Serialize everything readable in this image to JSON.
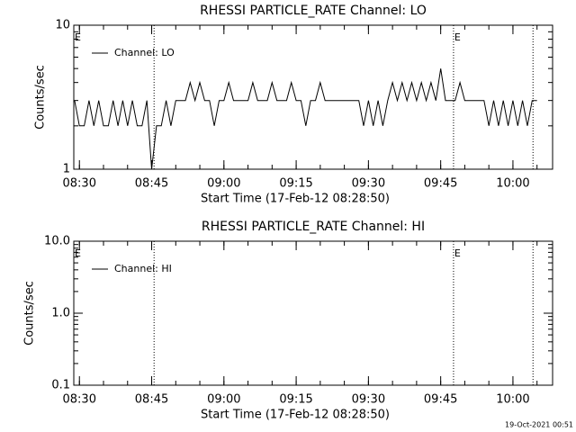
{
  "chart_data": [
    {
      "type": "line",
      "title": "RHESSI PARTICLE_RATE Channel: LO",
      "x_label": "Start Time (17-Feb-12 08:28:50)",
      "y_label": "Counts/sec",
      "log_y": true,
      "ylim": [
        1,
        10
      ],
      "yticks": [
        1,
        10
      ],
      "xlim": [
        "08:28:50",
        "10:08:14"
      ],
      "xticks": [
        "08:30",
        "08:45",
        "09:00",
        "09:15",
        "09:30",
        "09:45",
        "10:00"
      ],
      "markers": [
        "08:45:30",
        "09:47:40",
        "10:04:10"
      ],
      "annotations": [
        {
          "text": "E",
          "x": "08:28:50"
        },
        {
          "text": "E",
          "x": "09:47:40"
        }
      ],
      "legend": "upper left",
      "series": [
        {
          "name": "Channel: LO",
          "color": "#000000",
          "x": [
            "08:29",
            "08:30",
            "08:31",
            "08:32",
            "08:33",
            "08:34",
            "08:35",
            "08:36",
            "08:37",
            "08:38",
            "08:39",
            "08:40",
            "08:41",
            "08:42",
            "08:43",
            "08:44",
            "08:45",
            "08:46",
            "08:47",
            "08:48",
            "08:49",
            "08:50",
            "08:51",
            "08:52",
            "08:53",
            "08:54",
            "08:55",
            "08:56",
            "08:57",
            "08:58",
            "08:59",
            "09:00",
            "09:01",
            "09:02",
            "09:03",
            "09:04",
            "09:05",
            "09:06",
            "09:07",
            "09:08",
            "09:09",
            "09:10",
            "09:11",
            "09:12",
            "09:13",
            "09:14",
            "09:15",
            "09:16",
            "09:17",
            "09:18",
            "09:19",
            "09:20",
            "09:21",
            "09:22",
            "09:23",
            "09:24",
            "09:25",
            "09:26",
            "09:27",
            "09:28",
            "09:29",
            "09:30",
            "09:31",
            "09:32",
            "09:33",
            "09:34",
            "09:35",
            "09:36",
            "09:37",
            "09:38",
            "09:39",
            "09:40",
            "09:41",
            "09:42",
            "09:43",
            "09:44",
            "09:45",
            "09:46",
            "09:47",
            "09:48",
            "09:49",
            "09:50",
            "09:51",
            "09:52",
            "09:53",
            "09:54",
            "09:55",
            "09:56",
            "09:57",
            "09:58",
            "09:59",
            "10:00",
            "10:01",
            "10:02",
            "10:03",
            "10:04",
            "10:05"
          ],
          "values": [
            3,
            2,
            2,
            3,
            2,
            3,
            2,
            2,
            3,
            2,
            3,
            2,
            3,
            2,
            2,
            3,
            1,
            2,
            2,
            3,
            2,
            3,
            3,
            3,
            4,
            3,
            4,
            3,
            3,
            2,
            3,
            3,
            4,
            3,
            3,
            3,
            3,
            4,
            3,
            3,
            3,
            4,
            3,
            3,
            3,
            4,
            3,
            3,
            2,
            3,
            3,
            4,
            3,
            3,
            3,
            3,
            3,
            3,
            3,
            3,
            2,
            3,
            2,
            3,
            2,
            3,
            4,
            3,
            4,
            3,
            4,
            3,
            4,
            3,
            4,
            3,
            5,
            3,
            3,
            3,
            4,
            3,
            3,
            3,
            3,
            3,
            2,
            3,
            2,
            3,
            2,
            3,
            2,
            3,
            2,
            3,
            3
          ]
        }
      ]
    },
    {
      "type": "line",
      "title": "RHESSI PARTICLE_RATE Channel: HI",
      "x_label": "Start Time (17-Feb-12 08:28:50)",
      "y_label": "Counts/sec",
      "log_y": true,
      "ylim": [
        0.1,
        10
      ],
      "yticks": [
        {
          "value": 0.1,
          "label": "0.1"
        },
        {
          "value": 1,
          "label": "1.0"
        },
        {
          "value": 10,
          "label": "10.0"
        }
      ],
      "xlim": [
        "08:28:50",
        "10:08:14"
      ],
      "xticks": [
        "08:30",
        "08:45",
        "09:00",
        "09:15",
        "09:30",
        "09:45",
        "10:00"
      ],
      "markers": [
        "08:45:30",
        "09:47:40",
        "10:04:10"
      ],
      "annotations": [
        {
          "text": "E",
          "x": "08:28:50"
        },
        {
          "text": "E",
          "x": "09:47:40"
        }
      ],
      "legend": "upper left",
      "series": [
        {
          "name": "Channel: HI",
          "color": "#000000",
          "x": [],
          "values": []
        }
      ],
      "footer": "19-Oct-2021 00:51"
    }
  ]
}
